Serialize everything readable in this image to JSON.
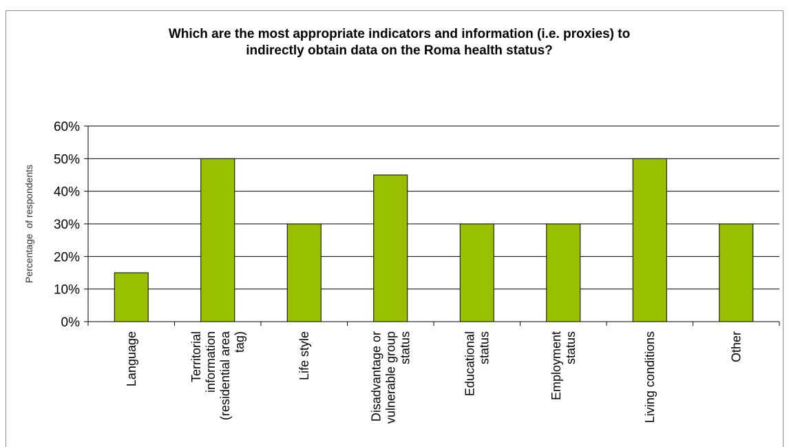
{
  "chart_data": {
    "type": "bar",
    "title": "Which are the most appropriate indicators and information (i.e. proxies) to\nindirectly obtain data on the Roma health status?",
    "xlabel": "",
    "ylabel": "Percentage  of respondents",
    "categories": [
      "Language",
      "Territorial information (residential area tag)",
      "Life style",
      "Disadvantage or vulnerable group status",
      "Educational status",
      "Employment status",
      "Living conditions",
      "Other"
    ],
    "category_lines": [
      [
        "Language"
      ],
      [
        "Territorial",
        "information",
        "(residential area",
        "tag)"
      ],
      [
        "Life style"
      ],
      [
        "Disadvantage or",
        "vulnerable group",
        "status"
      ],
      [
        "Educational",
        "status"
      ],
      [
        "Employment",
        "status"
      ],
      [
        "Living conditions"
      ],
      [
        "Other"
      ]
    ],
    "values": [
      15,
      50,
      30,
      45,
      30,
      30,
      50,
      30
    ],
    "ylim": [
      0,
      60
    ],
    "yticks": [
      0,
      10,
      20,
      30,
      40,
      50,
      60
    ],
    "ytick_labels": [
      "0%",
      "10%",
      "20%",
      "30%",
      "40%",
      "50%",
      "60%"
    ],
    "grid": true,
    "bar_color": "#99c000",
    "bar_edge_color": "#000000",
    "legend": "none"
  }
}
